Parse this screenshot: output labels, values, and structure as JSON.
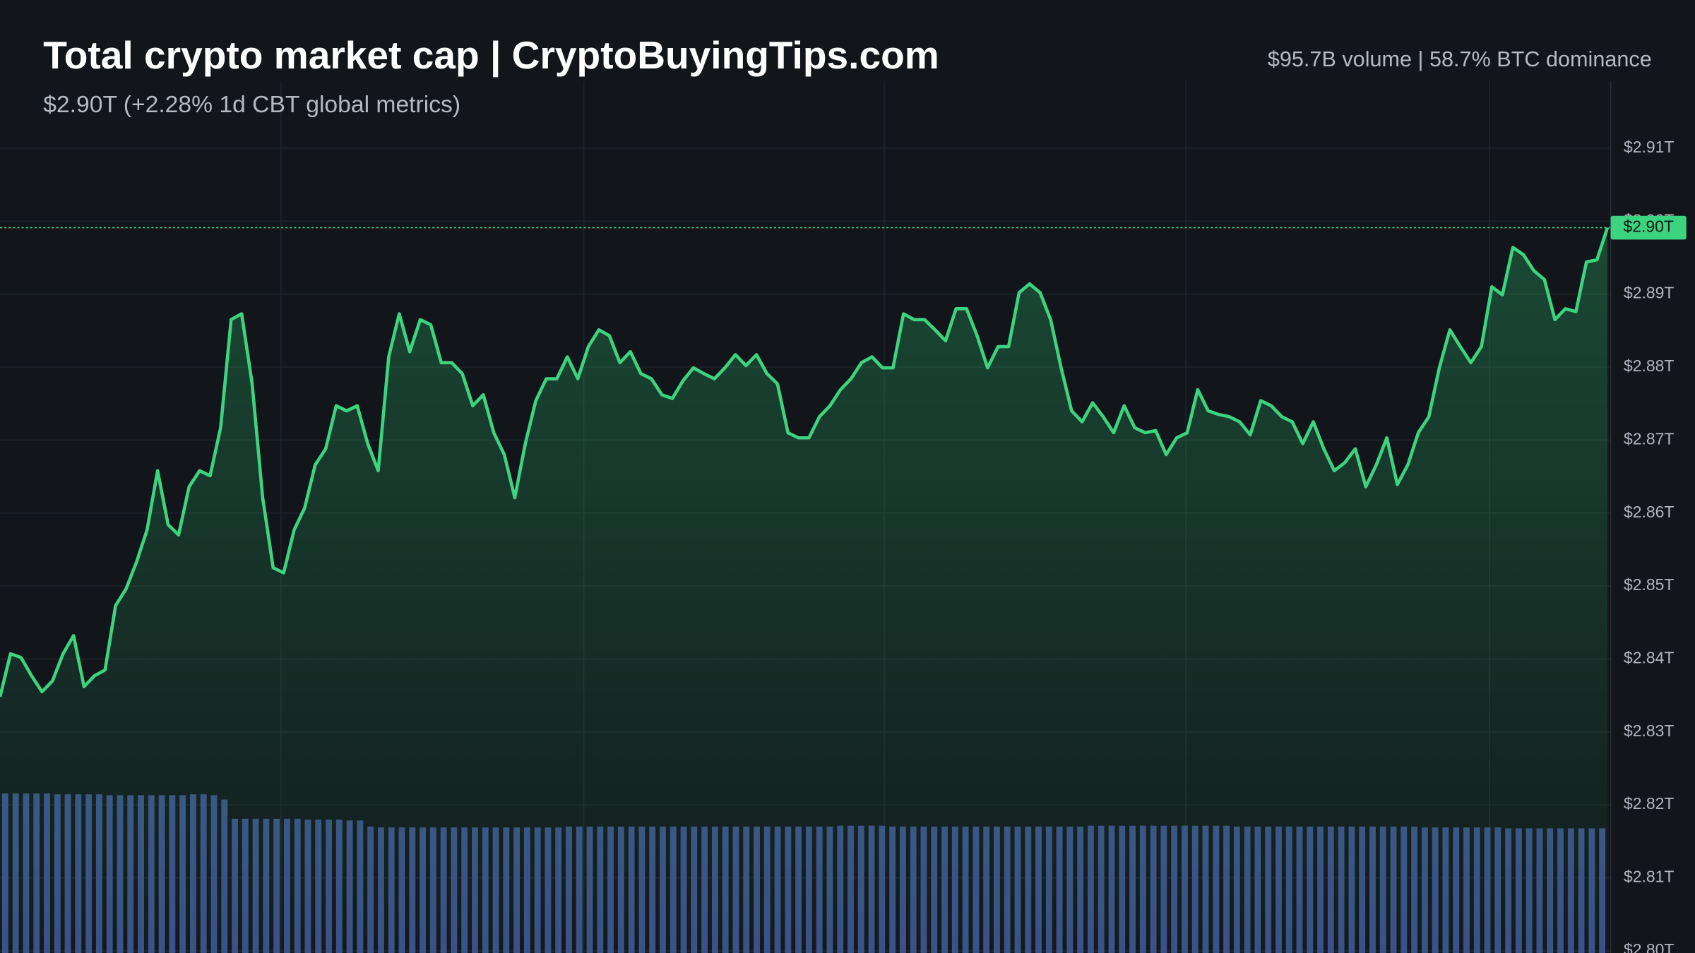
{
  "chart_data": {
    "type": "line",
    "title": "Total crypto market cap | CryptoBuyingTips.com",
    "subtitle": "$2.90T (+2.28% 1d CBT global metrics)",
    "annotation": "$95.7B volume | 58.7% BTC dominance",
    "current_label": "$2.90T",
    "ylim": [
      2.7997,
      2.9192
    ],
    "yticks": [
      {
        "value": 2.8,
        "label": "$2.80T"
      },
      {
        "value": 2.81,
        "label": "$2.81T"
      },
      {
        "value": 2.82,
        "label": "$2.82T"
      },
      {
        "value": 2.83,
        "label": "$2.83T"
      },
      {
        "value": 2.84,
        "label": "$2.84T"
      },
      {
        "value": 2.85,
        "label": "$2.85T"
      },
      {
        "value": 2.86,
        "label": "$2.86T"
      },
      {
        "value": 2.87,
        "label": "$2.87T"
      },
      {
        "value": 2.88,
        "label": "$2.88T"
      },
      {
        "value": 2.89,
        "label": "$2.89T"
      },
      {
        "value": 2.9,
        "label": "$2.90T"
      },
      {
        "value": 2.91,
        "label": "$2.91T"
      }
    ],
    "y2lim": [
      0,
      100
    ],
    "grid": true,
    "series": [
      {
        "color": "#3dd47f",
        "values": [
          2.8348,
          2.8407,
          2.8402,
          2.8377,
          2.8355,
          2.837,
          2.8407,
          2.8432,
          2.8362,
          2.8377,
          2.8385,
          2.8473,
          2.8496,
          2.8533,
          2.8577,
          2.8658,
          2.8584,
          2.857,
          2.8636,
          2.8658,
          2.8651,
          2.8717,
          2.8865,
          2.8873,
          2.8777,
          2.8621,
          2.8525,
          2.8518,
          2.8577,
          2.8607,
          2.8666,
          2.8688,
          2.8747,
          2.874,
          2.8747,
          2.8695,
          2.8658,
          2.8814,
          2.8873,
          2.8821,
          2.8865,
          2.8858,
          2.8806,
          2.8806,
          2.8791,
          2.8747,
          2.8762,
          2.871,
          2.868,
          2.8621,
          2.8695,
          2.8754,
          2.8784,
          2.8784,
          2.8814,
          2.8784,
          2.8828,
          2.8851,
          2.8843,
          2.8806,
          2.8821,
          2.8791,
          2.8784,
          2.8762,
          2.8757,
          2.8781,
          2.8799,
          2.8791,
          2.8784,
          2.8799,
          2.8817,
          2.8802,
          2.8817,
          2.8791,
          2.8777,
          2.871,
          2.8703,
          2.8703,
          2.8732,
          2.8747,
          2.8769,
          2.8784,
          2.8806,
          2.8814,
          2.8799,
          2.8799,
          2.8873,
          2.8865,
          2.8865,
          2.8851,
          2.8836,
          2.888,
          2.888,
          2.8843,
          2.8799,
          2.8828,
          2.8828,
          2.8902,
          2.8914,
          2.8902,
          2.8865,
          2.8799,
          2.874,
          2.8725,
          2.8751,
          2.8732,
          2.871,
          2.8747,
          2.8717,
          2.871,
          2.8713,
          2.868,
          2.8703,
          2.871,
          2.8769,
          2.874,
          2.8735,
          2.8732,
          2.8725,
          2.8707,
          2.8754,
          2.8747,
          2.8732,
          2.8725,
          2.8695,
          2.8725,
          2.8688,
          2.8658,
          2.8669,
          2.8688,
          2.8636,
          2.8666,
          2.8703,
          2.8639,
          2.8666,
          2.871,
          2.8732,
          2.8799,
          2.8851,
          2.8828,
          2.8806,
          2.8828,
          2.891,
          2.8899,
          2.8964,
          2.8954,
          2.8932,
          2.892,
          2.8865,
          2.888,
          2.8876,
          2.8944,
          2.8947,
          2.8991
        ]
      },
      {
        "color": "#3b4f86",
        "axis": "y2",
        "type": "bar",
        "values": [
          18.3,
          18.3,
          18.3,
          18.3,
          18.3,
          18.2,
          18.2,
          18.2,
          18.2,
          18.2,
          18.1,
          18.1,
          18.1,
          18.1,
          18.1,
          18.1,
          18.1,
          18.1,
          18.2,
          18.2,
          18.1,
          17.6,
          15.4,
          15.4,
          15.4,
          15.4,
          15.4,
          15.4,
          15.4,
          15.3,
          15.3,
          15.3,
          15.3,
          15.2,
          15.2,
          14.5,
          14.4,
          14.4,
          14.4,
          14.4,
          14.4,
          14.4,
          14.4,
          14.4,
          14.4,
          14.4,
          14.4,
          14.4,
          14.4,
          14.4,
          14.4,
          14.4,
          14.4,
          14.4,
          14.5,
          14.5,
          14.5,
          14.5,
          14.5,
          14.5,
          14.5,
          14.5,
          14.5,
          14.5,
          14.5,
          14.5,
          14.5,
          14.5,
          14.5,
          14.5,
          14.5,
          14.5,
          14.5,
          14.5,
          14.5,
          14.5,
          14.5,
          14.5,
          14.5,
          14.5,
          14.6,
          14.6,
          14.6,
          14.6,
          14.6,
          14.5,
          14.5,
          14.5,
          14.5,
          14.5,
          14.5,
          14.5,
          14.5,
          14.5,
          14.5,
          14.5,
          14.5,
          14.5,
          14.5,
          14.5,
          14.5,
          14.5,
          14.5,
          14.5,
          14.6,
          14.6,
          14.6,
          14.6,
          14.6,
          14.6,
          14.6,
          14.6,
          14.6,
          14.6,
          14.6,
          14.6,
          14.6,
          14.6,
          14.5,
          14.5,
          14.5,
          14.5,
          14.5,
          14.5,
          14.5,
          14.5,
          14.5,
          14.5,
          14.5,
          14.5,
          14.5,
          14.5,
          14.5,
          14.5,
          14.5,
          14.5,
          14.4,
          14.4,
          14.4,
          14.4,
          14.4,
          14.4,
          14.4,
          14.4,
          14.3,
          14.3,
          14.3,
          14.3,
          14.3,
          14.3,
          14.3,
          14.3,
          14.3,
          14.3
        ]
      }
    ]
  }
}
